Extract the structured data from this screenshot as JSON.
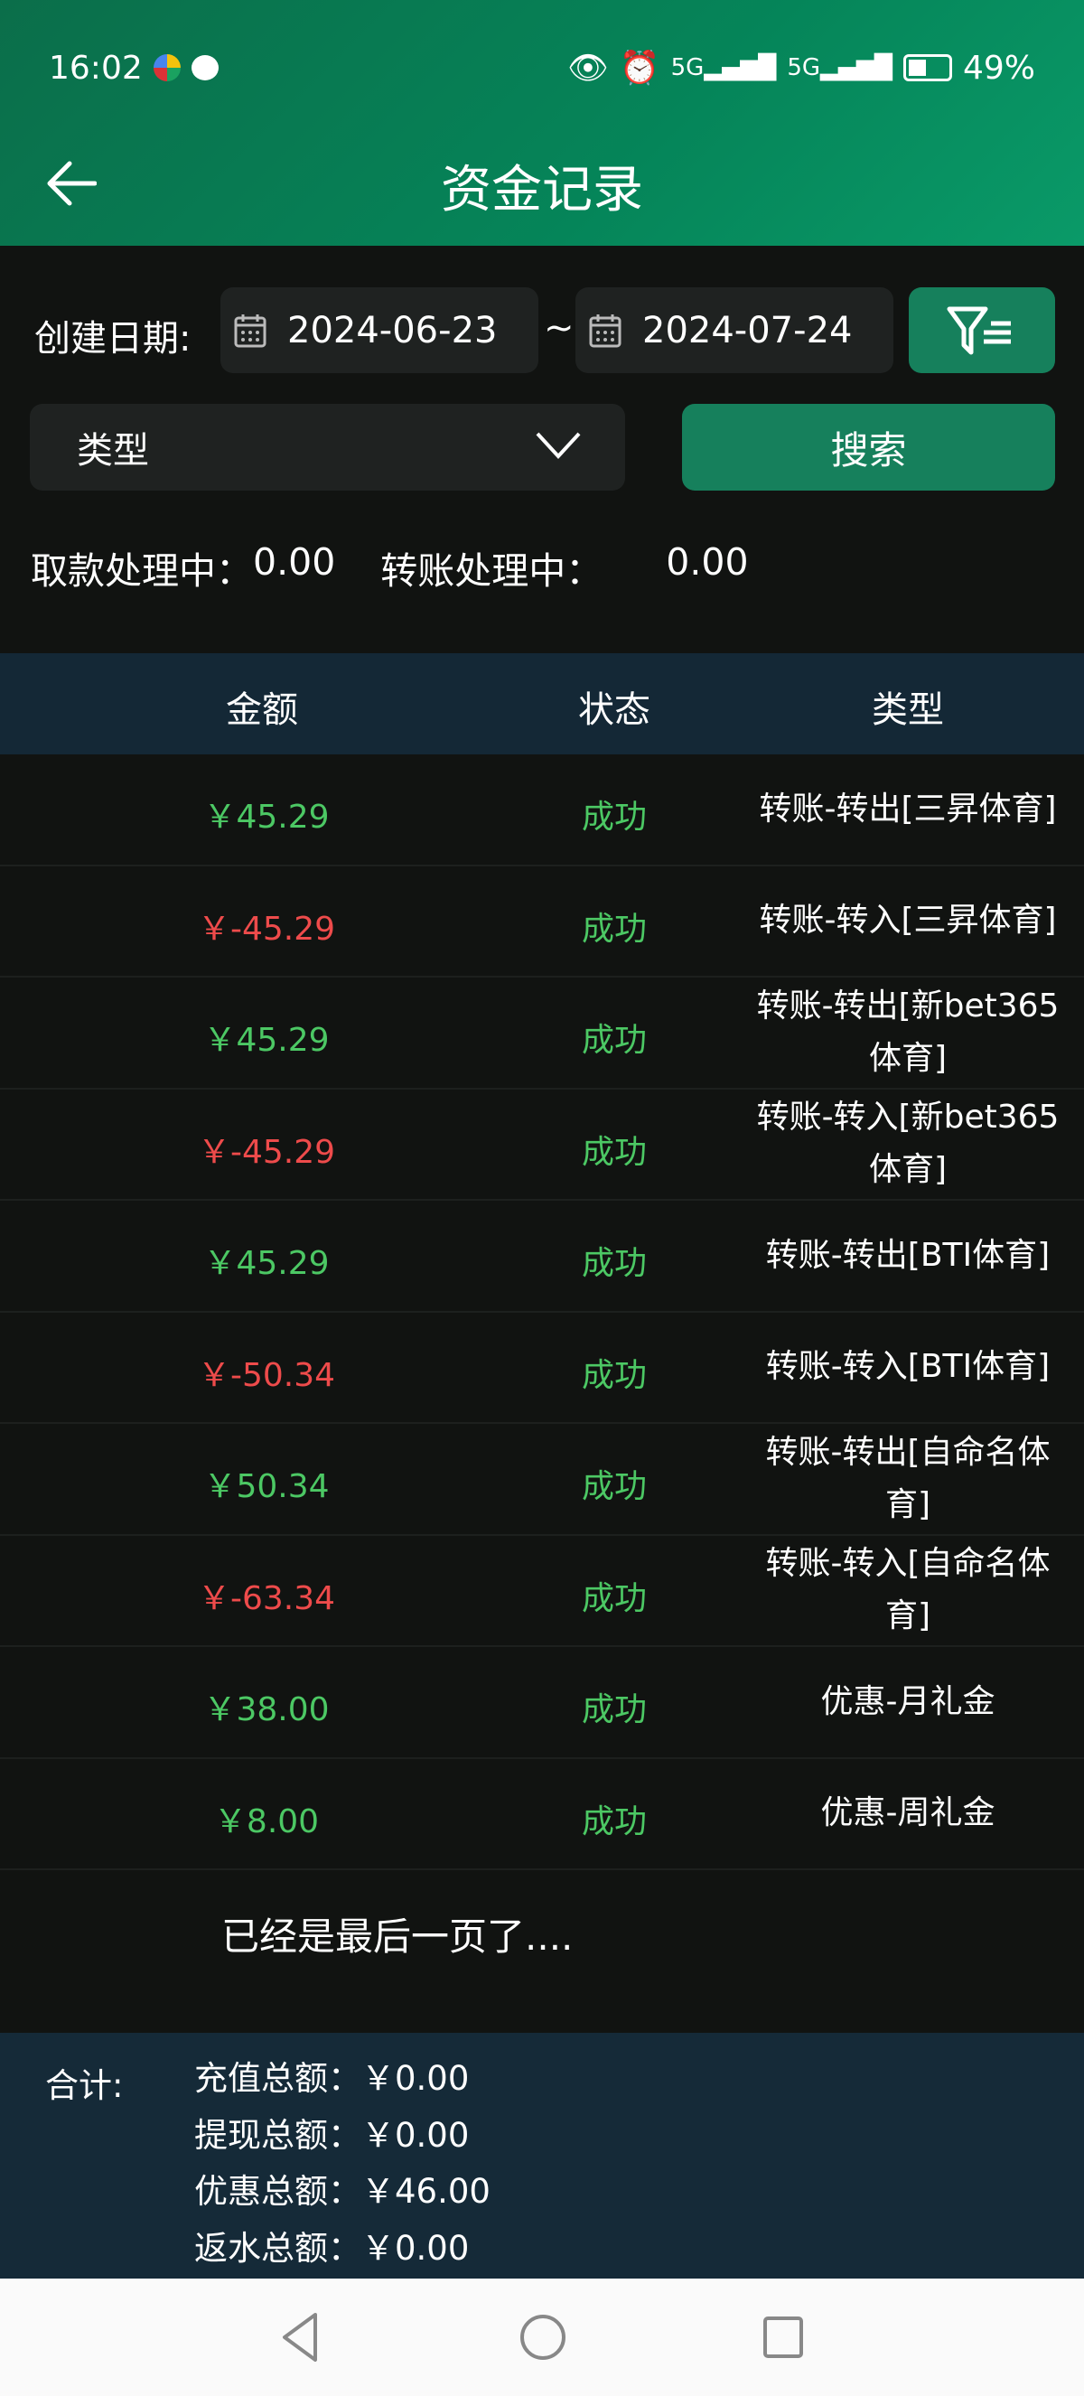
{
  "status_bar": {
    "time": "16:02",
    "battery": "49%"
  },
  "header": {
    "title": "资金记录"
  },
  "filters": {
    "date_label": "创建日期:",
    "start_date": "2024-06-23",
    "separator": "~",
    "end_date": "2024-07-24",
    "type_placeholder": "类型",
    "search_label": "搜索"
  },
  "pending": {
    "withdraw_label": "取款处理中：",
    "withdraw_value": "0.00",
    "transfer_label": "转账处理中：",
    "transfer_value": "0.00"
  },
  "table": {
    "headers": [
      "金额",
      "状态",
      "类型"
    ],
    "rows": [
      {
        "amount": "￥45.29",
        "status": "成功",
        "type": "转账-转出[三昇体育]",
        "sign": "pos"
      },
      {
        "amount": "￥-45.29",
        "status": "成功",
        "type": "转账-转入[三昇体育]",
        "sign": "neg"
      },
      {
        "amount": "￥45.29",
        "status": "成功",
        "type": "转账-转出[新bet365体育]",
        "sign": "pos"
      },
      {
        "amount": "￥-45.29",
        "status": "成功",
        "type": "转账-转入[新bet365体育]",
        "sign": "neg"
      },
      {
        "amount": "￥45.29",
        "status": "成功",
        "type": "转账-转出[BTI体育]",
        "sign": "pos"
      },
      {
        "amount": "￥-50.34",
        "status": "成功",
        "type": "转账-转入[BTI体育]",
        "sign": "neg"
      },
      {
        "amount": "￥50.34",
        "status": "成功",
        "type": "转账-转出[自命名体育]",
        "sign": "pos"
      },
      {
        "amount": "￥-63.34",
        "status": "成功",
        "type": "转账-转入[自命名体育]",
        "sign": "neg"
      },
      {
        "amount": "￥38.00",
        "status": "成功",
        "type": "优惠-月礼金",
        "sign": "pos"
      },
      {
        "amount": "￥8.00",
        "status": "成功",
        "type": "优惠-周礼金",
        "sign": "pos"
      }
    ]
  },
  "end_message": "已经是最后一页了....",
  "summary": {
    "label": "合计:",
    "items": [
      {
        "label": "充值总额：",
        "value": "￥0.00"
      },
      {
        "label": "提现总额：",
        "value": "￥0.00"
      },
      {
        "label": "优惠总额：",
        "value": "￥46.00"
      },
      {
        "label": "返水总额：",
        "value": "￥0.00"
      }
    ]
  },
  "colors": {
    "accent": "#16805c",
    "positive": "#4cc864",
    "negative": "#ee4b4b",
    "header_bg": "#142836"
  }
}
